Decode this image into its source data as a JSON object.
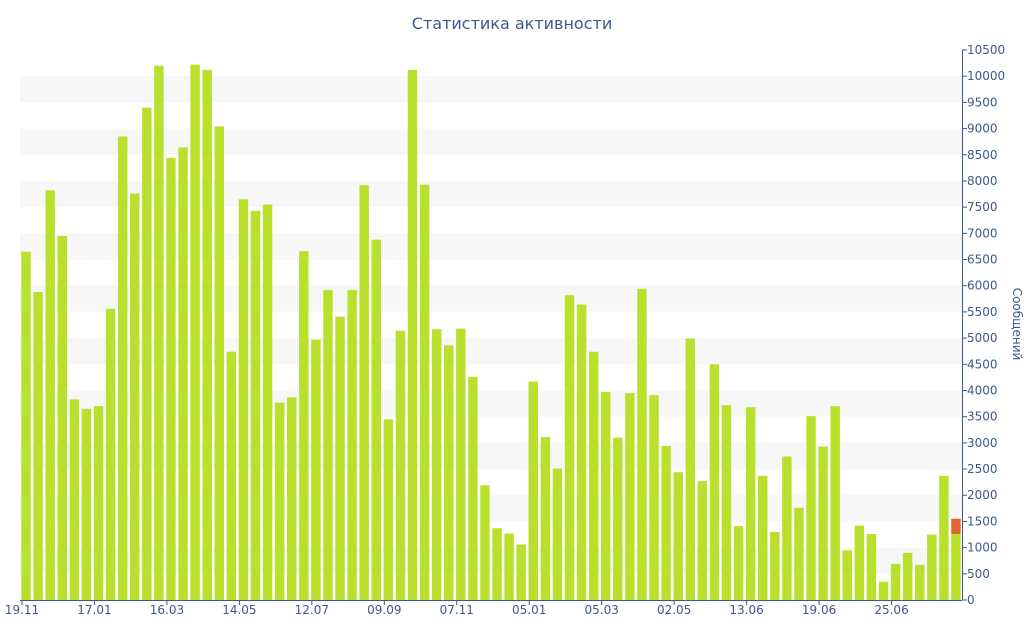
{
  "chart_data": {
    "type": "bar",
    "title": "Статистика активности",
    "ylabel": "Сообщений",
    "ylim": [
      0,
      10500
    ],
    "y_ticks": [
      0,
      500,
      1000,
      1500,
      2000,
      2500,
      3000,
      3500,
      4000,
      4500,
      5000,
      5500,
      6000,
      6500,
      7000,
      7500,
      8000,
      8500,
      9000,
      9500,
      10000,
      10500
    ],
    "y_axis_position": "right",
    "grid": "horizontal bands",
    "x_tick_labels": [
      {
        "index": 0,
        "label": "19.11"
      },
      {
        "index": 6,
        "label": "17.01"
      },
      {
        "index": 12,
        "label": "16.03"
      },
      {
        "index": 18,
        "label": "14.05"
      },
      {
        "index": 24,
        "label": "12.07"
      },
      {
        "index": 30,
        "label": "09.09"
      },
      {
        "index": 36,
        "label": "07.11"
      },
      {
        "index": 42,
        "label": "05.01"
      },
      {
        "index": 48,
        "label": "05.03"
      },
      {
        "index": 54,
        "label": "02.05"
      },
      {
        "index": 60,
        "label": "13.06"
      },
      {
        "index": 66,
        "label": "19.06"
      },
      {
        "index": 72,
        "label": "25.06"
      }
    ],
    "values": [
      6650,
      5880,
      7820,
      6950,
      3830,
      3650,
      3700,
      5560,
      8850,
      7760,
      9400,
      10200,
      8440,
      8640,
      10220,
      10120,
      9040,
      4740,
      7650,
      7430,
      7550,
      3770,
      3870,
      6660,
      4970,
      5920,
      5410,
      5920,
      7920,
      6880,
      3450,
      5140,
      10120,
      7930,
      5170,
      4860,
      5180,
      4260,
      2190,
      1370,
      1270,
      1060,
      4170,
      3110,
      2510,
      5820,
      5640,
      4740,
      3970,
      3100,
      3950,
      5940,
      3910,
      2940,
      2440,
      4990,
      2270,
      4500,
      3720,
      1410,
      3680,
      2370,
      1300,
      2740,
      1760,
      3510,
      2930,
      3700,
      950,
      1420,
      1260,
      350,
      690,
      900,
      670,
      1250,
      2370,
      1260
    ],
    "highlight": {
      "index": 77,
      "value": 1260,
      "extra": 290,
      "color": "#e2632d"
    },
    "bar_color": "#b8e02c",
    "band_color": "#f7f7f7",
    "axis_color": "#3a5a8c"
  }
}
